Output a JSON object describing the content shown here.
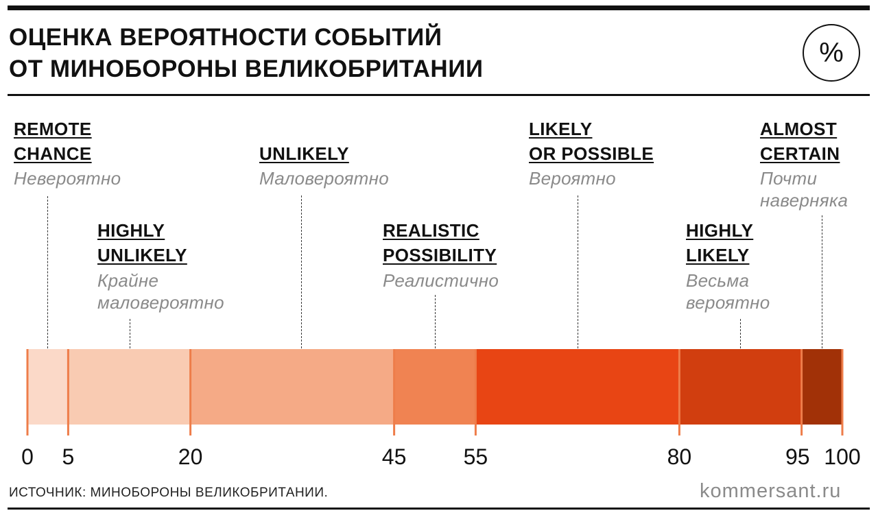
{
  "title_lines": [
    "ОЦЕНКА ВЕРОЯТНОСТИ СОБЫТИЙ",
    "ОТ МИНОБОРОНЫ ВЕЛИКОБРИТАНИИ"
  ],
  "badge": "%",
  "source": "ИСТОЧНИК: МИНОБОРОНЫ ВЕЛИКОБРИТАНИИ.",
  "brand": "kommersant.ru",
  "colors": {
    "ticks": "#ee7d4a",
    "text": "#111111",
    "muted": "#8a8a8a"
  },
  "chart_data": {
    "type": "bar",
    "orientation": "horizontal-stacked-scale",
    "xlim": [
      0,
      100
    ],
    "ticks": [
      0,
      5,
      20,
      45,
      55,
      80,
      95,
      100
    ],
    "segments": [
      {
        "from": 0,
        "to": 5,
        "color": "#fbd9c8",
        "label_en": [
          "REMOTE",
          "CHANCE"
        ],
        "label_ru": [
          "Невероятно"
        ]
      },
      {
        "from": 5,
        "to": 20,
        "color": "#f9cbb2",
        "label_en": [
          "HIGHLY",
          "UNLIKELY"
        ],
        "label_ru": [
          "Крайне",
          "маловероятно"
        ]
      },
      {
        "from": 20,
        "to": 45,
        "color": "#f5aa86",
        "label_en": [
          "UNLIKELY"
        ],
        "label_ru": [
          "Маловероятно"
        ]
      },
      {
        "from": 45,
        "to": 55,
        "color": "#f08352",
        "label_en": [
          "REALISTIC",
          "POSSIBILITY"
        ],
        "label_ru": [
          "Реалистично"
        ]
      },
      {
        "from": 55,
        "to": 80,
        "color": "#e84514",
        "label_en": [
          "LIKELY",
          "OR POSSIBLE"
        ],
        "label_ru": [
          "Вероятно"
        ]
      },
      {
        "from": 80,
        "to": 95,
        "color": "#d13e0f",
        "label_en": [
          "HIGHLY",
          "LIKELY"
        ],
        "label_ru": [
          "Весьма",
          "вероятно"
        ]
      },
      {
        "from": 95,
        "to": 100,
        "color": "#a13107",
        "label_en": [
          "ALMOST",
          "CERTAIN"
        ],
        "label_ru": [
          "Почти",
          "наверняка"
        ]
      }
    ]
  }
}
